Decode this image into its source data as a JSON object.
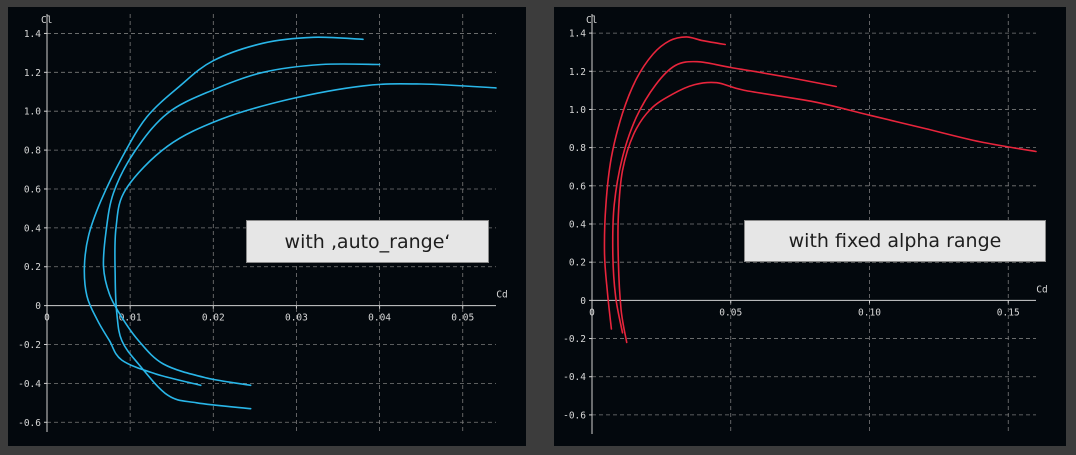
{
  "chart_data": [
    {
      "type": "line",
      "xlabel": "Cd",
      "ylabel": "Cl",
      "xlim": [
        0,
        0.054
      ],
      "ylim": [
        -0.65,
        1.5
      ],
      "xticks": [
        0,
        0.01,
        0.02,
        0.03,
        0.04,
        0.05
      ],
      "yticks": [
        -0.6,
        -0.4,
        -0.2,
        0,
        0.2,
        0.4,
        0.6,
        0.8,
        1.0,
        1.2,
        1.4
      ],
      "xtick_labels": [
        "0",
        "0.01",
        "0.02",
        "0.03",
        "0.04",
        "0.05"
      ],
      "ytick_labels": [
        "-0.6",
        "-0.4",
        "-0.2",
        "0",
        "0.2",
        "0.4",
        "0.6",
        "0.8",
        "1.0",
        "1.2",
        "1.4"
      ],
      "grid": true,
      "line_color": "#29b6e8",
      "annotation": "with ‚auto_range‘",
      "series": [
        {
          "x": [
            0.0185,
            0.013,
            0.009,
            0.0075,
            0.006,
            0.0048,
            0.0045,
            0.005,
            0.0065,
            0.009,
            0.012,
            0.016,
            0.02,
            0.026,
            0.032,
            0.038
          ],
          "y": [
            -0.41,
            -0.35,
            -0.28,
            -0.18,
            -0.07,
            0.05,
            0.2,
            0.36,
            0.54,
            0.76,
            0.97,
            1.13,
            1.26,
            1.35,
            1.38,
            1.37
          ]
        },
        {
          "x": [
            0.0245,
            0.019,
            0.014,
            0.011,
            0.009,
            0.0075,
            0.0068,
            0.0071,
            0.008,
            0.0105,
            0.0145,
            0.02,
            0.026,
            0.033,
            0.04
          ],
          "y": [
            -0.41,
            -0.37,
            -0.3,
            -0.18,
            -0.06,
            0.06,
            0.2,
            0.38,
            0.58,
            0.79,
            0.99,
            1.11,
            1.2,
            1.24,
            1.24
          ]
        },
        {
          "x": [
            0.0245,
            0.018,
            0.0145,
            0.011,
            0.009,
            0.0084,
            0.0082,
            0.0083,
            0.0095,
            0.0145,
            0.021,
            0.029,
            0.038,
            0.045,
            0.054
          ],
          "y": [
            -0.53,
            -0.5,
            -0.46,
            -0.3,
            -0.18,
            -0.04,
            0.15,
            0.4,
            0.6,
            0.82,
            0.96,
            1.06,
            1.13,
            1.14,
            1.12
          ]
        }
      ]
    },
    {
      "type": "line",
      "xlabel": "Cd",
      "ylabel": "Cl",
      "xlim": [
        0,
        0.16
      ],
      "ylim": [
        -0.7,
        1.5
      ],
      "xticks": [
        0,
        0.05,
        0.1,
        0.15
      ],
      "yticks": [
        -0.6,
        -0.4,
        -0.2,
        0,
        0.2,
        0.4,
        0.6,
        0.8,
        1.0,
        1.2,
        1.4
      ],
      "xtick_labels": [
        "0",
        "0.05",
        "0.10",
        "0.15"
      ],
      "ytick_labels": [
        "-0.6",
        "-0.4",
        "-0.2",
        "0",
        "0.2",
        "0.4",
        "0.6",
        "0.8",
        "1.0",
        "1.2",
        "1.4"
      ],
      "grid": true,
      "line_color": "#e8253c",
      "annotation": "with fixed alpha range",
      "series": [
        {
          "x": [
            0.007,
            0.0055,
            0.0045,
            0.005,
            0.007,
            0.011,
            0.016,
            0.022,
            0.028,
            0.034,
            0.04,
            0.048
          ],
          "y": [
            -0.15,
            0.05,
            0.25,
            0.5,
            0.75,
            0.98,
            1.16,
            1.29,
            1.36,
            1.38,
            1.36,
            1.34
          ]
        },
        {
          "x": [
            0.011,
            0.0085,
            0.0075,
            0.008,
            0.011,
            0.016,
            0.023,
            0.03,
            0.038,
            0.05,
            0.07,
            0.088
          ],
          "y": [
            -0.17,
            0.02,
            0.25,
            0.5,
            0.75,
            0.96,
            1.13,
            1.23,
            1.25,
            1.22,
            1.17,
            1.12
          ]
        },
        {
          "x": [
            0.0125,
            0.0105,
            0.0095,
            0.0095,
            0.011,
            0.015,
            0.021,
            0.029,
            0.037,
            0.045,
            0.055,
            0.08,
            0.1,
            0.12,
            0.14,
            0.16
          ],
          "y": [
            -0.22,
            -0.05,
            0.2,
            0.45,
            0.68,
            0.87,
            1.0,
            1.08,
            1.13,
            1.14,
            1.1,
            1.04,
            0.97,
            0.9,
            0.83,
            0.78
          ]
        }
      ]
    }
  ]
}
